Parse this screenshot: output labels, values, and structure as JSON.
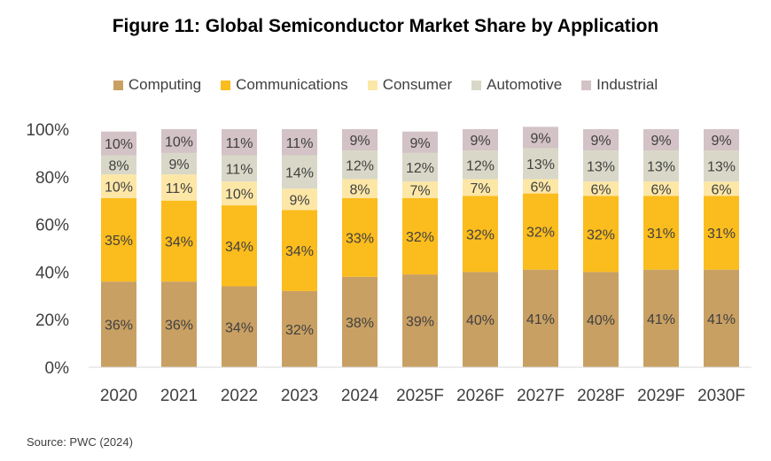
{
  "chart_data": {
    "type": "bar",
    "stacked": true,
    "title": "Figure 11: Global Semiconductor Market Share by Application",
    "categories": [
      "2020",
      "2021",
      "2022",
      "2023",
      "2024",
      "2025F",
      "2026F",
      "2027F",
      "2028F",
      "2029F",
      "2030F"
    ],
    "series": [
      {
        "name": "Computing",
        "color": "#c9a063",
        "values": [
          36,
          36,
          34,
          32,
          38,
          39,
          40,
          41,
          40,
          41,
          41
        ]
      },
      {
        "name": "Communications",
        "color": "#fbbc1d",
        "values": [
          35,
          34,
          34,
          34,
          33,
          32,
          32,
          32,
          32,
          31,
          31
        ]
      },
      {
        "name": "Consumer",
        "color": "#fde7a7",
        "values": [
          10,
          11,
          10,
          9,
          8,
          7,
          7,
          6,
          6,
          6,
          6
        ]
      },
      {
        "name": "Automotive",
        "color": "#d9d8c8",
        "values": [
          8,
          9,
          11,
          14,
          12,
          12,
          12,
          13,
          13,
          13,
          13
        ]
      },
      {
        "name": "Industrial",
        "color": "#d3c2c6",
        "values": [
          10,
          10,
          11,
          11,
          9,
          9,
          9,
          9,
          9,
          9,
          9
        ]
      }
    ],
    "y_ticks": [
      "0%",
      "20%",
      "40%",
      "60%",
      "80%",
      "100%"
    ],
    "ylim": [
      0,
      100
    ],
    "legend_position": "top",
    "source": "Source: PWC (2024)"
  }
}
